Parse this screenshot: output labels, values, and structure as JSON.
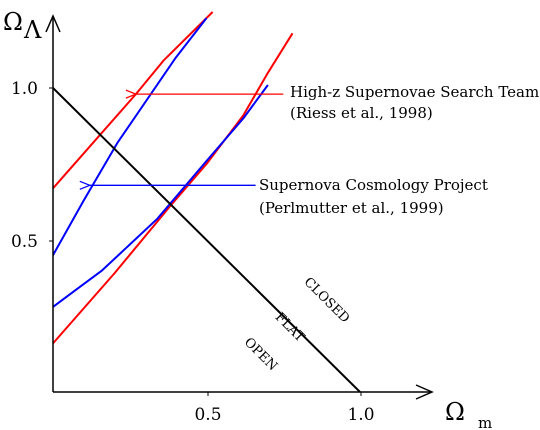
{
  "chart_data": {
    "type": "line",
    "xlabel": "Ω",
    "xlabel_sub": "m",
    "ylabel": "Ω",
    "ylabel_sub": "Λ",
    "xlim": [
      0,
      1.25
    ],
    "ylim": [
      0,
      1.1
    ],
    "x_ticks": [
      {
        "value": 0.5,
        "label": "0.5"
      },
      {
        "value": 1.0,
        "label": "1.0"
      }
    ],
    "y_ticks": [
      {
        "value": 0.5,
        "label": "0.5"
      },
      {
        "value": 1.0,
        "label": "1.0"
      }
    ],
    "grid": false,
    "colors": {
      "high_z": "#ff0000",
      "scp": "#0000ff",
      "flat": "#000000",
      "axes": "#000000"
    },
    "series": [
      {
        "group": "high_z",
        "color": "#ff0000",
        "points": [
          [
            0.0,
            0.67
          ],
          [
            0.27,
            0.98
          ],
          [
            0.36,
            1.09
          ],
          [
            0.52,
            1.25
          ]
        ]
      },
      {
        "group": "high_z",
        "color": "#ff0000",
        "points": [
          [
            0.0,
            0.16
          ],
          [
            0.2,
            0.39
          ],
          [
            0.38,
            0.61
          ],
          [
            0.5,
            0.75
          ],
          [
            0.62,
            0.91
          ],
          [
            0.7,
            1.05
          ],
          [
            0.78,
            1.18
          ]
        ]
      },
      {
        "group": "scp",
        "color": "#0000ff",
        "points": [
          [
            0.0,
            0.45
          ],
          [
            0.1,
            0.63
          ],
          [
            0.21,
            0.82
          ],
          [
            0.4,
            1.1
          ],
          [
            0.5,
            1.23
          ]
        ]
      },
      {
        "group": "scp",
        "color": "#0000ff",
        "points": [
          [
            0.0,
            0.28
          ],
          [
            0.08,
            0.34
          ],
          [
            0.16,
            0.4
          ],
          [
            0.34,
            0.57
          ],
          [
            0.5,
            0.76
          ],
          [
            0.62,
            0.9
          ],
          [
            0.7,
            1.01
          ]
        ]
      },
      {
        "group": "flat",
        "color": "#000000",
        "points": [
          [
            0.0,
            1.0
          ],
          [
            1.0,
            0.0
          ]
        ]
      }
    ],
    "annotations": [
      {
        "lines": [
          "High-z Supernovae Search Team",
          "(Riess et al., 1998)"
        ],
        "color": "#ff0000",
        "arrow_from": [
          0.75,
          0.98
        ],
        "arrow_to": [
          0.27,
          0.98
        ]
      },
      {
        "lines": [
          "Supernova Cosmology Project",
          "(Perlmutter et al., 1999)"
        ],
        "color": "#0000ff",
        "arrow_from": [
          0.66,
          0.68
        ],
        "arrow_to": [
          0.12,
          0.68
        ]
      }
    ],
    "region_labels": [
      "CLOSED",
      "FLAT",
      "OPEN"
    ]
  }
}
